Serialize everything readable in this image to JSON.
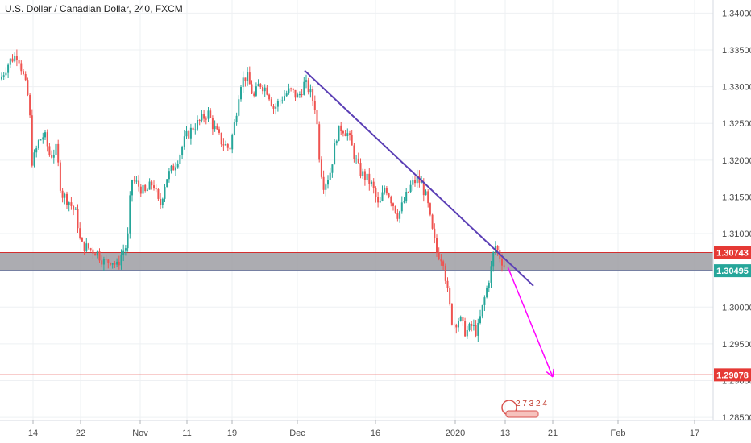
{
  "header": {
    "title": "U.S. Dollar / Canadian Dollar, 240, FXCM"
  },
  "colors": {
    "up_candle": "#26a69a",
    "down_candle": "#ef5350",
    "grid": "#eef0f3",
    "zone_fill": "#9e9ea3",
    "zone_top_line": "#d32f2f",
    "zone_bottom_line": "#1e3a8a",
    "trendline": "#5b3fb5",
    "projection_arrow": "#ff00ff",
    "target_line": "#e53935",
    "tag_red": "#e53935",
    "tag_teal": "#26a69a"
  },
  "watermark": {
    "text": "2 7 3 2 4",
    "icon": "watermark-seal-icon"
  },
  "chart_data": {
    "type": "candlestick",
    "symbol": "U.S. Dollar / Canadian Dollar",
    "interval": "240",
    "source": "FXCM",
    "x_tick_labels": [
      "14",
      "22",
      "Nov",
      "11",
      "19",
      "Dec",
      "16",
      "2020",
      "13",
      "21",
      "Feb",
      "17"
    ],
    "y_tick_labels": [
      "1.34000",
      "1.33500",
      "1.33000",
      "1.32500",
      "1.32000",
      "1.31500",
      "1.31000",
      "1.30500",
      "1.30000",
      "1.29500",
      "1.29000",
      "1.28500"
    ],
    "ylim": [
      1.2815,
      1.3418
    ],
    "grid": true,
    "price_path": [
      [
        0,
        1.331
      ],
      [
        12,
        1.3335
      ],
      [
        22,
        1.3345
      ],
      [
        30,
        1.331
      ],
      [
        36,
        1.328
      ],
      [
        40,
        1.3195
      ],
      [
        48,
        1.3225
      ],
      [
        55,
        1.3235
      ],
      [
        62,
        1.3205
      ],
      [
        70,
        1.3215
      ],
      [
        76,
        1.3155
      ],
      [
        85,
        1.3145
      ],
      [
        95,
        1.3125
      ],
      [
        100,
        1.3085
      ],
      [
        110,
        1.308
      ],
      [
        120,
        1.3075
      ],
      [
        130,
        1.306
      ],
      [
        138,
        1.3065
      ],
      [
        145,
        1.3055
      ],
      [
        152,
        1.3075
      ],
      [
        158,
        1.3085
      ],
      [
        163,
        1.3175
      ],
      [
        172,
        1.3165
      ],
      [
        180,
        1.3155
      ],
      [
        190,
        1.317
      ],
      [
        198,
        1.3135
      ],
      [
        206,
        1.3175
      ],
      [
        215,
        1.319
      ],
      [
        222,
        1.3205
      ],
      [
        230,
        1.323
      ],
      [
        240,
        1.3245
      ],
      [
        250,
        1.3255
      ],
      [
        258,
        1.3265
      ],
      [
        265,
        1.3245
      ],
      [
        275,
        1.3225
      ],
      [
        285,
        1.3215
      ],
      [
        292,
        1.3255
      ],
      [
        298,
        1.3305
      ],
      [
        306,
        1.3315
      ],
      [
        315,
        1.3285
      ],
      [
        322,
        1.3305
      ],
      [
        332,
        1.3295
      ],
      [
        340,
        1.327
      ],
      [
        350,
        1.3285
      ],
      [
        360,
        1.3295
      ],
      [
        370,
        1.3285
      ],
      [
        378,
        1.3305
      ],
      [
        384,
        1.3295
      ],
      [
        392,
        1.327
      ],
      [
        397,
        1.3195
      ],
      [
        402,
        1.3165
      ],
      [
        410,
        1.3185
      ],
      [
        418,
        1.3235
      ],
      [
        424,
        1.3245
      ],
      [
        432,
        1.3235
      ],
      [
        440,
        1.3205
      ],
      [
        446,
        1.3185
      ],
      [
        455,
        1.3175
      ],
      [
        462,
        1.3165
      ],
      [
        470,
        1.3135
      ],
      [
        478,
        1.3165
      ],
      [
        486,
        1.3145
      ],
      [
        494,
        1.3125
      ],
      [
        502,
        1.3145
      ],
      [
        510,
        1.3165
      ],
      [
        518,
        1.3175
      ],
      [
        524,
        1.3165
      ],
      [
        530,
        1.3145
      ],
      [
        536,
        1.3105
      ],
      [
        542,
        1.3075
      ],
      [
        550,
        1.3065
      ],
      [
        556,
        1.3015
      ],
      [
        562,
        1.2975
      ],
      [
        570,
        1.2985
      ],
      [
        578,
        1.2965
      ],
      [
        586,
        1.2975
      ],
      [
        592,
        1.2965
      ],
      [
        598,
        1.2995
      ],
      [
        604,
        1.3025
      ],
      [
        610,
        1.3055
      ],
      [
        614,
        1.3085
      ],
      [
        618,
        1.3075
      ],
      [
        622,
        1.3065
      ],
      [
        627,
        1.3055
      ]
    ],
    "support_resistance_zone": {
      "top": 1.30743,
      "bottom": 1.30495
    },
    "target_level": 1.29078,
    "price_labels": [
      "1.30743",
      "1.30495",
      "1.29078"
    ],
    "trendline": {
      "from": [
        378,
        1.3322
      ],
      "to": [
        662,
        1.3029
      ]
    },
    "projection_arrow": {
      "from": [
        630,
        1.3055
      ],
      "to": [
        686,
        1.2905
      ]
    }
  }
}
